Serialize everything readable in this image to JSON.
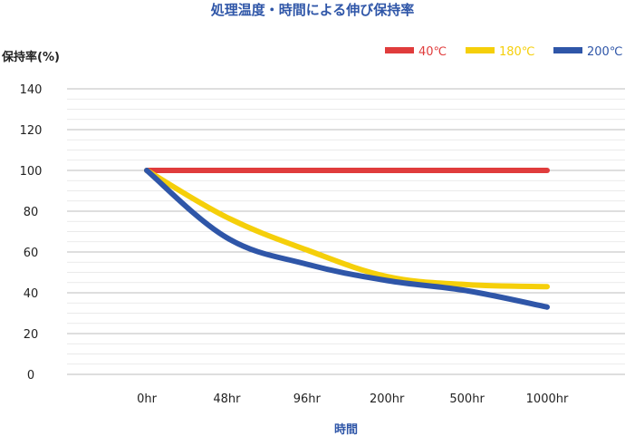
{
  "chart_data": {
    "type": "line",
    "title": "処理温度・時間による伸び保持率",
    "xlabel": "時間",
    "ylabel": "保持率(%)",
    "categories": [
      "0hr",
      "48hr",
      "96hr",
      "200hr",
      "500hr",
      "1000hr"
    ],
    "ylim": [
      0,
      140
    ],
    "yticks": [
      0,
      20,
      40,
      60,
      80,
      100,
      120,
      140
    ],
    "grid": true,
    "legend_position": "top-right",
    "series": [
      {
        "name": "40℃",
        "color": "#e03c3c",
        "values": [
          100,
          100,
          100,
          100,
          100,
          100
        ]
      },
      {
        "name": "180℃",
        "color": "#f5cf0a",
        "values": [
          100,
          77,
          61,
          48,
          44,
          43
        ]
      },
      {
        "name": "200℃",
        "color": "#2f56a8",
        "values": [
          100,
          67,
          54,
          46,
          41,
          33
        ]
      }
    ],
    "title_color": "#2f56a8",
    "axis_label_color": "#2f56a8",
    "ylabel_color": "#222222"
  }
}
